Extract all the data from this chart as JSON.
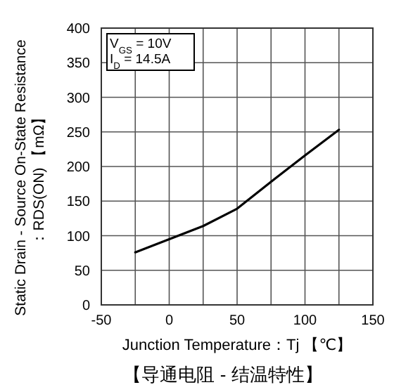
{
  "chart_data": {
    "type": "line",
    "title": "【导通电阻 - 结温特性】",
    "xlabel": "Junction Temperature：Tj 【℃】",
    "ylabel": "Static Drain - Source On-State Resistance\n：RDS(ON) 【mΩ】",
    "x": [
      -25,
      0,
      25,
      50,
      75,
      100,
      125
    ],
    "series": [
      {
        "color": "#000000",
        "values": [
          76,
          95,
          114,
          139,
          178,
          216,
          253
        ]
      }
    ],
    "xlim": [
      -50,
      150
    ],
    "xticks": [
      -50,
      {
        "value": -25,
        "label": null
      },
      0,
      {
        "value": 25,
        "label": null
      },
      50,
      {
        "value": 75,
        "label": null
      },
      100,
      {
        "value": 125,
        "label": null
      },
      150
    ],
    "ylim": [
      0,
      400
    ],
    "yticks": [
      0,
      50,
      100,
      150,
      200,
      250,
      300,
      350,
      400
    ],
    "grid": true,
    "marker": "none",
    "line_style": "solid",
    "annotations": [
      "V$_{GS}$ = 10V",
      "I$_{D}$ = 14.5A"
    ]
  }
}
